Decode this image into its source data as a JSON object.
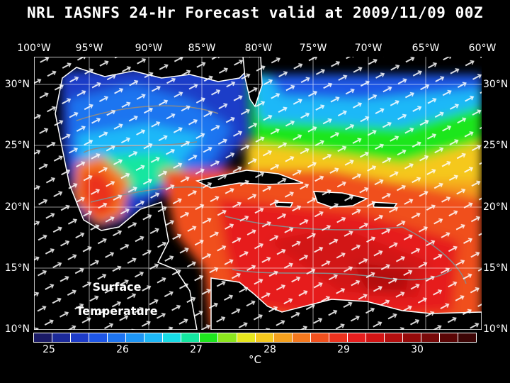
{
  "title": "NRL IASNFS  24-Hr Forecast valid at 2009/11/09 00Z",
  "lon_labels": [
    "100°W",
    "95°W",
    "90°W",
    "85°W",
    "80°W",
    "75°W",
    "70°W",
    "65°W",
    "60°W"
  ],
  "lat_labels": [
    "30°N",
    "25°N",
    "20°N",
    "15°N",
    "10°N"
  ],
  "annotation": {
    "line1": "Surface",
    "line2": "Temperature"
  },
  "colorbar": {
    "colors": [
      "#1a1a66",
      "#1c2a9a",
      "#1e3cc8",
      "#1e56e6",
      "#1e74f0",
      "#1e96f5",
      "#1eb8f8",
      "#18dce6",
      "#14e6a0",
      "#1ee61e",
      "#8ce61e",
      "#e6e61e",
      "#f5c81e",
      "#f5a01e",
      "#f5781e",
      "#f0501e",
      "#eb321e",
      "#e61e1e",
      "#d21414",
      "#b40f0f",
      "#960a0a",
      "#780a0a",
      "#5a0505",
      "#3c0505"
    ],
    "labels": [
      "25",
      "26",
      "27",
      "28",
      "29",
      "30"
    ],
    "unit": "°C"
  },
  "legend_colors": {
    "cold": "#1e3cc8",
    "cool": "#1eb8f8",
    "mid": "#1ee61e",
    "warm": "#f5781e",
    "hot": "#e61e1e",
    "land": "#000000",
    "coast": "#ffffff",
    "contour": "#8a8a8a",
    "wind_arrow": "#ffffff"
  }
}
